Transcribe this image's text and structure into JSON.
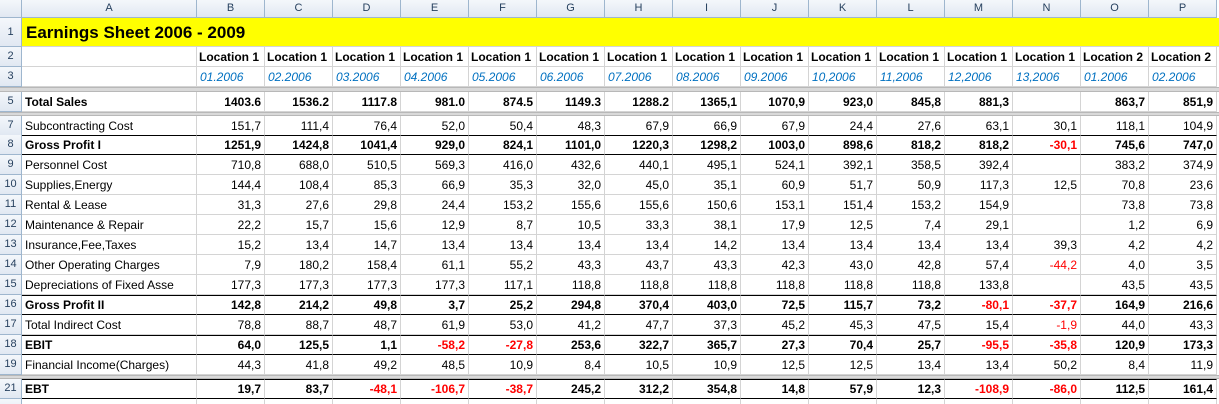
{
  "column_headers": [
    "A",
    "B",
    "C",
    "D",
    "E",
    "F",
    "G",
    "H",
    "I",
    "J",
    "K",
    "L",
    "M",
    "N",
    "O",
    "P"
  ],
  "title_row": {
    "row_number": 1,
    "text": "Earnings Sheet 2006 - 2009"
  },
  "location_row": {
    "row_number": 2,
    "cells": [
      "Location 1",
      "Location 1",
      "Location 1",
      "Location 1",
      "Location 1",
      "Location 1",
      "Location 1",
      "Location 1",
      "Location 1",
      "Location 1",
      "Location 1",
      "Location 1",
      "Location 1",
      "Location 2",
      "Location 2"
    ]
  },
  "date_row": {
    "row_number": 3,
    "cells": [
      "01.2006",
      "02.2006",
      "03.2006",
      "04.2006",
      "05.2006",
      "06.2006",
      "07.2006",
      "08.2006",
      "09.2006",
      "10,2006",
      "11,2006",
      "12,2006",
      "13,2006",
      "01.2006",
      "02.2006"
    ]
  },
  "rows": [
    {
      "row_number": 5,
      "label": "Total Sales",
      "bold": true,
      "cells": [
        "1403.6",
        "1536.2",
        "1117.8",
        "981.0",
        "874.5",
        "1149.3",
        "1288.2",
        "1365,1",
        "1070,9",
        "923,0",
        "845,8",
        "881,3",
        null,
        "863,7",
        "851,9"
      ]
    },
    {
      "row_number": 7,
      "label": "Subcontracting Cost",
      "bold": false,
      "cells": [
        "151,7",
        "111,4",
        "76,4",
        "52,0",
        "50,4",
        "48,3",
        "67,9",
        "66,9",
        "67,9",
        "24,4",
        "27,6",
        "63,1",
        "30,1",
        "118,1",
        "104,9"
      ]
    },
    {
      "row_number": 8,
      "label": "Gross Profit I",
      "bold": true,
      "cells": [
        "1251,9",
        "1424,8",
        "1041,4",
        "929,0",
        "824,1",
        "1101,0",
        "1220,3",
        "1298,2",
        "1003,0",
        "898,6",
        "818,2",
        "818,2",
        "-30,1",
        "745,6",
        "747,0"
      ]
    },
    {
      "row_number": 9,
      "label": "Personnel Cost",
      "bold": false,
      "cells": [
        "710,8",
        "688,0",
        "510,5",
        "569,3",
        "416,0",
        "432,6",
        "440,1",
        "495,1",
        "524,1",
        "392,1",
        "358,5",
        "392,4",
        null,
        "383,2",
        "374,9"
      ]
    },
    {
      "row_number": 10,
      "label": "Supplies,Energy",
      "bold": false,
      "cells": [
        "144,4",
        "108,4",
        "85,3",
        "66,9",
        "35,3",
        "32,0",
        "45,0",
        "35,1",
        "60,9",
        "51,7",
        "50,9",
        "117,3",
        "12,5",
        "70,8",
        "23,6"
      ]
    },
    {
      "row_number": 11,
      "label": "Rental & Lease",
      "bold": false,
      "cells": [
        "31,3",
        "27,6",
        "29,8",
        "24,4",
        "153,2",
        "155,6",
        "155,6",
        "150,6",
        "153,1",
        "151,4",
        "153,2",
        "154,9",
        null,
        "73,8",
        "73,8"
      ]
    },
    {
      "row_number": 12,
      "label": "Maintenance & Repair",
      "bold": false,
      "cells": [
        "22,2",
        "15,7",
        "15,6",
        "12,9",
        "8,7",
        "10,5",
        "33,3",
        "38,1",
        "17,9",
        "12,5",
        "7,4",
        "29,1",
        null,
        "1,2",
        "6,9"
      ]
    },
    {
      "row_number": 13,
      "label": "Insurance,Fee,Taxes",
      "bold": false,
      "cells": [
        "15,2",
        "13,4",
        "14,7",
        "13,4",
        "13,4",
        "13,4",
        "13,4",
        "14,2",
        "13,4",
        "13,4",
        "13,4",
        "13,4",
        "39,3",
        "4,2",
        "4,2"
      ]
    },
    {
      "row_number": 14,
      "label": "Other Operating Charges",
      "bold": false,
      "cells": [
        "7,9",
        "180,2",
        "158,4",
        "61,1",
        "55,2",
        "43,3",
        "43,7",
        "43,3",
        "42,3",
        "43,0",
        "42,8",
        "57,4",
        "-44,2",
        "4,0",
        "3,5"
      ]
    },
    {
      "row_number": 15,
      "label": "Depreciations of Fixed Asse",
      "bold": false,
      "cells": [
        "177,3",
        "177,3",
        "177,3",
        "177,3",
        "117,1",
        "118,8",
        "118,8",
        "118,8",
        "118,8",
        "118,8",
        "118,8",
        "133,8",
        null,
        "43,5",
        "43,5"
      ]
    },
    {
      "row_number": 16,
      "label": "Gross Profit II",
      "bold": true,
      "cells": [
        "142,8",
        "214,2",
        "49,8",
        "3,7",
        "25,2",
        "294,8",
        "370,4",
        "403,0",
        "72,5",
        "115,7",
        "73,2",
        "-80,1",
        "-37,7",
        "164,9",
        "216,6"
      ]
    },
    {
      "row_number": 17,
      "label": "Total Indirect Cost",
      "bold": false,
      "cells": [
        "78,8",
        "88,7",
        "48,7",
        "61,9",
        "53,0",
        "41,2",
        "47,7",
        "37,3",
        "45,2",
        "45,3",
        "47,5",
        "15,4",
        "-1,9",
        "44,0",
        "43,3"
      ]
    },
    {
      "row_number": 18,
      "label": "EBIT",
      "bold": true,
      "cells": [
        "64,0",
        "125,5",
        "1,1",
        "-58,2",
        "-27,8",
        "253,6",
        "322,7",
        "365,7",
        "27,3",
        "70,4",
        "25,7",
        "-95,5",
        "-35,8",
        "120,9",
        "173,3"
      ]
    },
    {
      "row_number": 19,
      "label": "Financial Income(Charges)",
      "bold": false,
      "cells": [
        "44,3",
        "41,8",
        "49,2",
        "48,5",
        "10,9",
        "8,4",
        "10,5",
        "10,9",
        "12,5",
        "12,5",
        "13,4",
        "13,4",
        "50,2",
        "8,4",
        "11,9"
      ]
    },
    {
      "row_number": 21,
      "label": "EBT",
      "bold": true,
      "cells": [
        "19,7",
        "83,7",
        "-48,1",
        "-106,7",
        "-38,7",
        "245,2",
        "312,2",
        "354,8",
        "14,8",
        "57,9",
        "12,3",
        "-108,9",
        "-86,0",
        "112,5",
        "161,4"
      ]
    }
  ]
}
